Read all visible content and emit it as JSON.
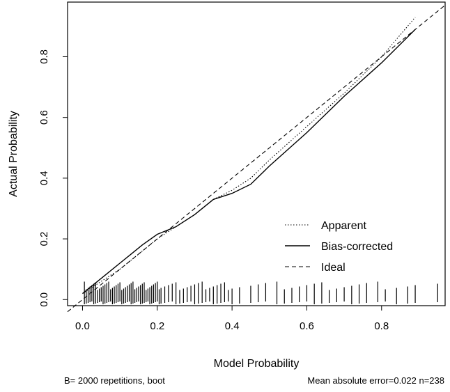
{
  "chart_data": {
    "type": "line",
    "xlabel": "Model Probability",
    "ylabel": "Actual Probability",
    "xlim": [
      -0.04,
      0.97
    ],
    "ylim": [
      -0.02,
      0.98
    ],
    "xticks": [
      0.0,
      0.2,
      0.4,
      0.6,
      0.8
    ],
    "yticks": [
      0.0,
      0.2,
      0.4,
      0.6,
      0.8
    ],
    "xtick_labels": [
      "0.0",
      "0.2",
      "0.4",
      "0.6",
      "0.8"
    ],
    "ytick_labels": [
      "0.0",
      "0.2",
      "0.4",
      "0.6",
      "0.8"
    ],
    "legend_position": "bottom-right",
    "series": [
      {
        "name": "Apparent",
        "style": "dotted",
        "x": [
          0.0,
          0.05,
          0.1,
          0.15,
          0.2,
          0.25,
          0.3,
          0.35,
          0.4,
          0.45,
          0.5,
          0.6,
          0.7,
          0.8,
          0.89
        ],
        "y": [
          0.02,
          0.06,
          0.1,
          0.15,
          0.2,
          0.24,
          0.28,
          0.33,
          0.36,
          0.4,
          0.46,
          0.57,
          0.68,
          0.8,
          0.93
        ]
      },
      {
        "name": "Bias-corrected",
        "style": "solid",
        "x": [
          0.0,
          0.05,
          0.1,
          0.13,
          0.16,
          0.2,
          0.25,
          0.3,
          0.35,
          0.4,
          0.45,
          0.5,
          0.6,
          0.7,
          0.8,
          0.89
        ],
        "y": [
          0.02,
          0.07,
          0.12,
          0.15,
          0.18,
          0.215,
          0.24,
          0.28,
          0.33,
          0.35,
          0.38,
          0.44,
          0.55,
          0.67,
          0.78,
          0.89
        ]
      },
      {
        "name": "Ideal",
        "style": "dashed",
        "x": [
          -0.04,
          0.97
        ],
        "y": [
          -0.04,
          0.97
        ]
      }
    ],
    "rug": {
      "x": [
        0.005,
        0.01,
        0.015,
        0.02,
        0.025,
        0.03,
        0.035,
        0.04,
        0.045,
        0.05,
        0.055,
        0.06,
        0.065,
        0.07,
        0.075,
        0.08,
        0.085,
        0.09,
        0.095,
        0.1,
        0.105,
        0.11,
        0.115,
        0.12,
        0.125,
        0.13,
        0.135,
        0.14,
        0.145,
        0.15,
        0.155,
        0.16,
        0.165,
        0.17,
        0.175,
        0.18,
        0.185,
        0.19,
        0.195,
        0.2,
        0.205,
        0.21,
        0.22,
        0.23,
        0.24,
        0.25,
        0.26,
        0.27,
        0.28,
        0.29,
        0.3,
        0.31,
        0.32,
        0.33,
        0.34,
        0.35,
        0.36,
        0.37,
        0.38,
        0.39,
        0.4,
        0.42,
        0.45,
        0.47,
        0.49,
        0.52,
        0.54,
        0.56,
        0.58,
        0.6,
        0.62,
        0.64,
        0.66,
        0.68,
        0.7,
        0.72,
        0.74,
        0.76,
        0.79,
        0.81,
        0.84,
        0.87,
        0.89,
        0.95
      ]
    }
  },
  "footnote_left": "B= 2000 repetitions, boot",
  "footnote_right": "Mean absolute error=0.022 n=238"
}
